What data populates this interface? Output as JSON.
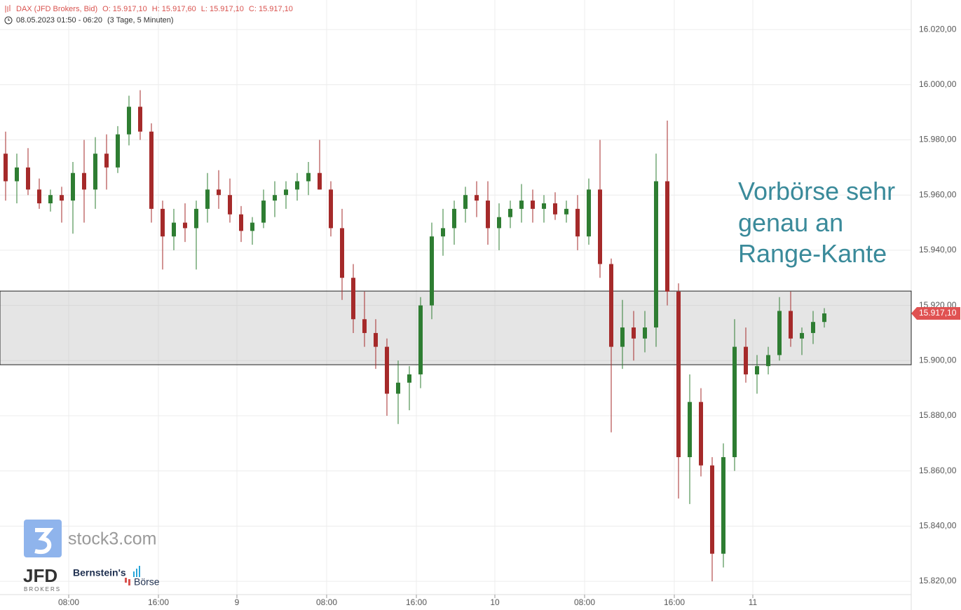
{
  "chart_data": {
    "type": "candlestick",
    "title": "DAX (JFD Brokers, Bid)",
    "ohlc_labels": [
      "O: 15.917,10",
      "H: 15.917,60",
      "L: 15.917,10",
      "C: 15.917,10"
    ],
    "subtitle": "08.05.2023 01:50 - 06:20",
    "subtitle_extra": "(3 Tage, 5 Minuten)",
    "annotation": [
      "Vorbörse sehr",
      "genau an",
      "Range-Kante"
    ],
    "logos": [
      "stock3.com",
      "JFD",
      "BROKERS",
      "Bernstein's",
      "Börse"
    ],
    "up_color": "#2e7d32",
    "down_color": "#a52a2a",
    "grid": true,
    "xlim": [
      0,
      81.25
    ],
    "ylim": [
      15809.6,
      16030.7
    ],
    "xticks": [
      {
        "value": 6.125,
        "label": "08:00"
      },
      {
        "value": 14.125,
        "label": "16:00"
      },
      {
        "value": 21.125,
        "label": "9"
      },
      {
        "value": 29.125,
        "label": "08:00"
      },
      {
        "value": 37.125,
        "label": "16:00"
      },
      {
        "value": 44.125,
        "label": "10"
      },
      {
        "value": 52.125,
        "label": "08:00"
      },
      {
        "value": 60.125,
        "label": "16:00"
      },
      {
        "value": 67.125,
        "label": "11"
      }
    ],
    "yticks": [
      {
        "value": 15820,
        "label": "15.820,00"
      },
      {
        "value": 15840,
        "label": "15.840,00"
      },
      {
        "value": 15860,
        "label": "15.860,00"
      },
      {
        "value": 15880,
        "label": "15.880,00"
      },
      {
        "value": 15900,
        "label": "15.900,00"
      },
      {
        "value": 15920,
        "label": "15.920,00"
      },
      {
        "value": 15940,
        "label": "15.940,00"
      },
      {
        "value": 15960,
        "label": "15.960,00"
      },
      {
        "value": 15980,
        "label": "15.980,00"
      },
      {
        "value": 16000,
        "label": "16.000,00"
      },
      {
        "value": 16020,
        "label": "16.020,00"
      }
    ],
    "range_box": [
      15898.5,
      15925.2
    ],
    "last_price": {
      "value": 15917.1,
      "label": "15.917,10"
    },
    "x": [
      0.5,
      1.5,
      2.5,
      3.5,
      4.5,
      5.5,
      6.5,
      7.5,
      8.5,
      9.5,
      10.5,
      11.5,
      12.5,
      13.5,
      14.5,
      15.5,
      16.5,
      17.5,
      18.5,
      19.5,
      20.5,
      21.5,
      22.5,
      23.5,
      24.5,
      25.5,
      26.5,
      27.5,
      28.5,
      29.5,
      30.5,
      31.5,
      32.5,
      33.5,
      34.5,
      35.5,
      36.5,
      37.5,
      38.5,
      39.5,
      40.5,
      41.5,
      42.5,
      43.5,
      44.5,
      45.5,
      46.5,
      47.5,
      48.5,
      49.5,
      50.5,
      51.5,
      52.5,
      53.5,
      54.5,
      55.5,
      56.5,
      57.5,
      58.5,
      59.5,
      60.5,
      61.5,
      62.5,
      63.5,
      64.5,
      65.5,
      66.5,
      67.5,
      68.5,
      69.5,
      70.5,
      71.5,
      72.5,
      73.5
    ],
    "open": [
      15975,
      15965,
      15970,
      15962,
      15957,
      15960,
      15958,
      15968,
      15962,
      15975,
      15970,
      15982,
      15992,
      15983,
      15955,
      15945,
      15950,
      15948,
      15955,
      15962,
      15960,
      15953,
      15947,
      15950,
      15958,
      15960,
      15962,
      15965,
      15968,
      15962,
      15948,
      15930,
      15915,
      15910,
      15905,
      15888,
      15892,
      15895,
      15920,
      15945,
      15948,
      15955,
      15960,
      15958,
      15948,
      15952,
      15955,
      15958,
      15955,
      15957,
      15953,
      15955,
      15945,
      15962,
      15935,
      15905,
      15912,
      15908,
      15912,
      15965,
      15925,
      15865,
      15885,
      15862,
      15830,
      15865,
      15905,
      15895,
      15898,
      15902,
      15918,
      15908,
      15910,
      15914
    ],
    "high": [
      15983,
      15975,
      15977,
      15966,
      15962,
      15963,
      15972,
      15980,
      15981,
      15982,
      15985,
      15996,
      15998,
      15986,
      15958,
      15955,
      15957,
      15958,
      15968,
      15969,
      15966,
      15956,
      15952,
      15962,
      15965,
      15965,
      15968,
      15972,
      15980,
      15965,
      15955,
      15935,
      15925,
      15915,
      15908,
      15900,
      15898,
      15923,
      15950,
      15955,
      15958,
      15963,
      15965,
      15965,
      15957,
      15958,
      15964,
      15962,
      15960,
      15961,
      15958,
      15960,
      15966,
      15980,
      15937,
      15922,
      15918,
      15918,
      15975,
      15987,
      15928,
      15895,
      15890,
      15865,
      15870,
      15915,
      15912,
      15902,
      15905,
      15923,
      15925,
      15912,
      15918,
      15919
    ],
    "low": [
      15958,
      15957,
      15960,
      15955,
      15954,
      15950,
      15946,
      15950,
      15955,
      15962,
      15968,
      15978,
      15980,
      15950,
      15933,
      15940,
      15943,
      15933,
      15950,
      15955,
      15950,
      15943,
      15942,
      15948,
      15952,
      15955,
      15958,
      15960,
      15962,
      15945,
      15922,
      15910,
      15905,
      15897,
      15880,
      15877,
      15882,
      15890,
      15915,
      15938,
      15942,
      15950,
      15952,
      15942,
      15940,
      15948,
      15950,
      15950,
      15950,
      15951,
      15950,
      15940,
      15942,
      15930,
      15874,
      15897,
      15900,
      15903,
      15905,
      15920,
      15850,
      15848,
      15858,
      15820,
      15825,
      15860,
      15892,
      15888,
      15895,
      15900,
      15905,
      15902,
      15906,
      15912
    ],
    "close": [
      15965,
      15970,
      15962,
      15957,
      15960,
      15958,
      15968,
      15962,
      15975,
      15970,
      15982,
      15992,
      15983,
      15955,
      15945,
      15950,
      15948,
      15955,
      15962,
      15960,
      15953,
      15947,
      15950,
      15958,
      15960,
      15962,
      15965,
      15968,
      15962,
      15948,
      15930,
      15915,
      15910,
      15905,
      15888,
      15892,
      15895,
      15920,
      15945,
      15948,
      15955,
      15960,
      15958,
      15948,
      15952,
      15955,
      15958,
      15955,
      15957,
      15953,
      15955,
      15945,
      15962,
      15935,
      15905,
      15912,
      15908,
      15912,
      15965,
      15925,
      15865,
      15885,
      15862,
      15830,
      15865,
      15905,
      15895,
      15898,
      15902,
      15918,
      15908,
      15910,
      15914,
      15917.1
    ]
  }
}
